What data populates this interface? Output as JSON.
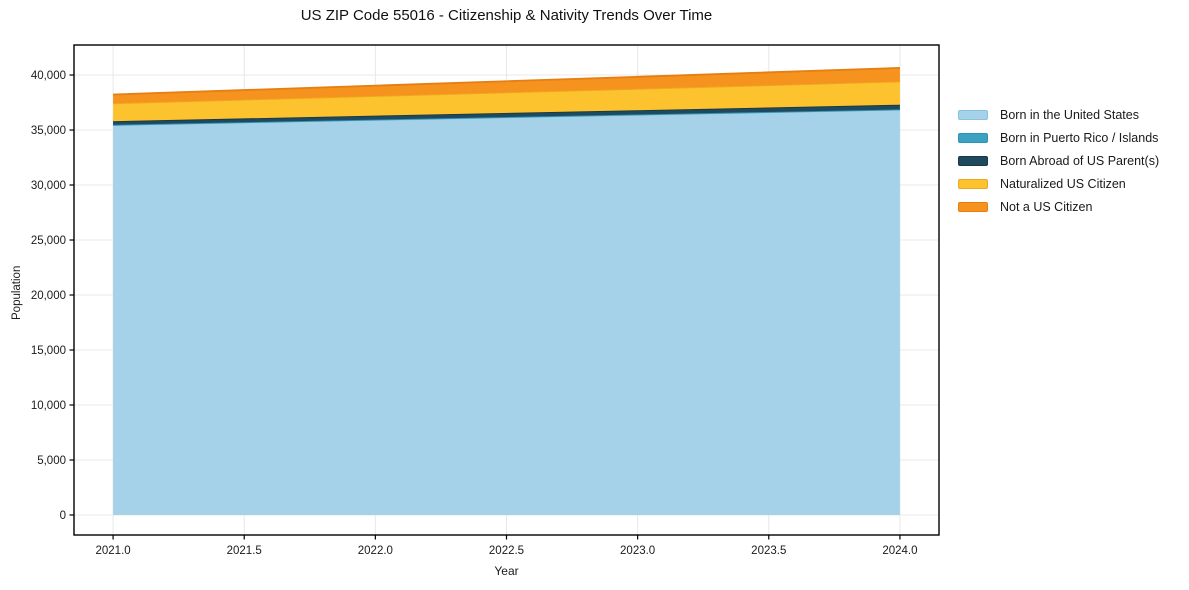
{
  "chart_data": {
    "type": "area",
    "stacked": true,
    "title": "US ZIP Code 55016 - Citizenship & Nativity Trends Over Time",
    "xlabel": "Year",
    "ylabel": "Population",
    "x": [
      2021,
      2022,
      2023,
      2024
    ],
    "series": [
      {
        "name": "Born in the United States",
        "color": "#a5d2e8",
        "edge": "#8ac2de",
        "values": [
          35450,
          35920,
          36385,
          36850
        ]
      },
      {
        "name": "Born in Puerto Rico / Islands",
        "color": "#3ba2c2",
        "edge": "#2f94b4",
        "values": [
          25,
          25,
          25,
          25
        ]
      },
      {
        "name": "Born Abroad of US Parent(s)",
        "color": "#1f4a5e",
        "edge": "#17384a",
        "values": [
          330,
          365,
          395,
          430
        ]
      },
      {
        "name": "Naturalized US Citizen",
        "color": "#fdc32e",
        "edge": "#eda920",
        "values": [
          1620,
          1785,
          1945,
          2110
        ]
      },
      {
        "name": "Not a US Citizen",
        "color": "#f6921e",
        "edge": "#e67e11",
        "values": [
          800,
          945,
          1085,
          1230
        ]
      }
    ],
    "x_range": [
      2020.851,
      2024.149
    ],
    "y_range": [
      -1820,
      42730
    ],
    "xticks": {
      "values": [
        2021.0,
        2021.5,
        2022.0,
        2022.5,
        2023.0,
        2023.5,
        2024.0
      ],
      "labels": [
        "2021.0",
        "2021.5",
        "2022.0",
        "2022.5",
        "2023.0",
        "2023.5",
        "2024.0"
      ]
    },
    "yticks": {
      "values": [
        0,
        5000,
        10000,
        15000,
        20000,
        25000,
        30000,
        35000,
        40000
      ],
      "labels": [
        "0",
        "5,000",
        "10,000",
        "15,000",
        "20,000",
        "25,000",
        "30,000",
        "35,000",
        "40,000"
      ]
    },
    "grid": true,
    "grid_color": "#e8e8e8",
    "spine_color": "#000000",
    "tick_label_color": "#1a1a1a",
    "background": "#ffffff",
    "legend_position": "right"
  }
}
